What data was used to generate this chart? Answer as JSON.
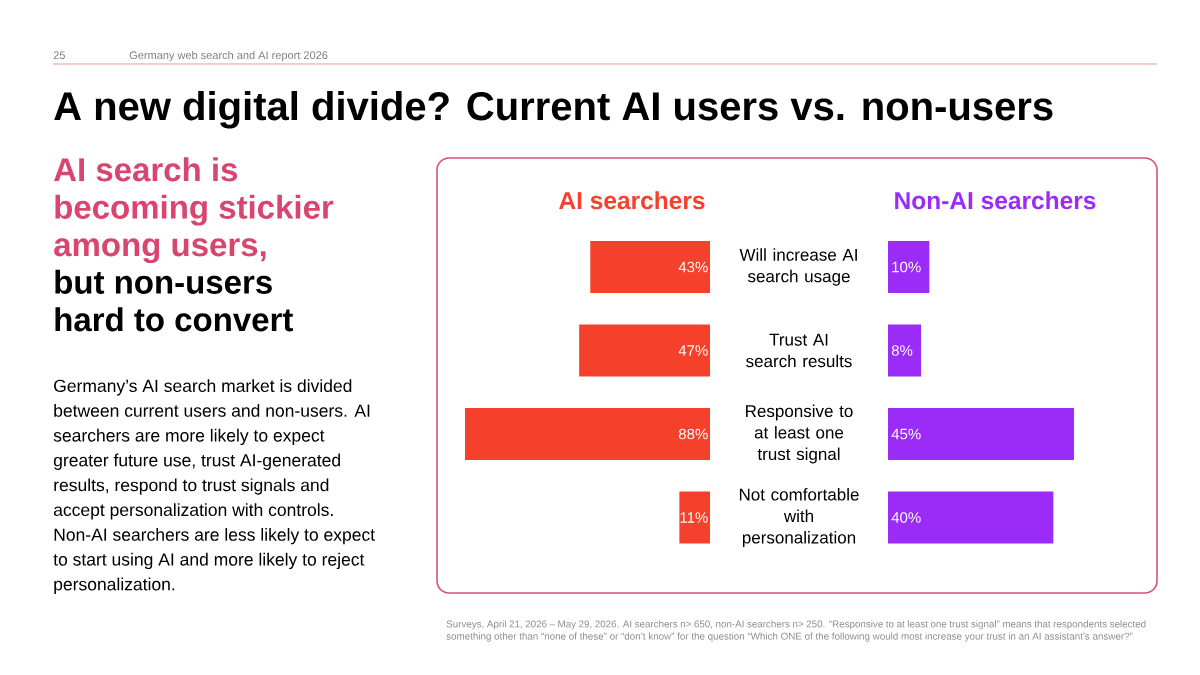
{
  "chart_data": [
    {
      "type": "other",
      "title": "A new digital divide? Current AI users vs. non-users",
      "annotations": [
        "25",
        "Germany web search and AI report 2026",
        "AI search is becoming stickier among users,",
        "but non-users hard to convert",
        "Germany’s AI search market is divided between current users and non-users. AI searchers are more likely to expect greater future use, trust AI-generated results, respond to trust signals and accept personalization with controls. Non-AI searchers are less likely to expect to start using AI and more likely to reject personalization.",
        "Surveys, April 21, 2026 – May 29, 2026. AI searchers n> 650, non-AI searchers n> 250. “Responsive to at least one trust signal” means that respondents selected something other than “none of these” or “don’t know” for the question “Which ONE of the following would most increase your trust in an AI assistant’s answer?”"
      ]
    },
    {
      "type": "bar",
      "orientation": "horizontal",
      "title": "AI searchers",
      "categories": [
        "Will increase AI search usage",
        "Trust AI search results",
        "Responsive to at least one trust signal",
        "Not comfortable with personalization"
      ],
      "values": [
        43,
        47,
        88,
        11
      ],
      "value_labels": [
        "43%",
        "47%",
        "88%",
        "11%"
      ],
      "color": "#f5412b",
      "tick_labels": "y"
    },
    {
      "type": "bar",
      "orientation": "horizontal",
      "title": "Non-AI searchers",
      "categories": [
        null,
        null,
        null,
        null
      ],
      "values": [
        10,
        8,
        45,
        40
      ],
      "value_labels": [
        "10%",
        "8%",
        "45%",
        "40%"
      ],
      "color": "#9b2cf7"
    }
  ]
}
